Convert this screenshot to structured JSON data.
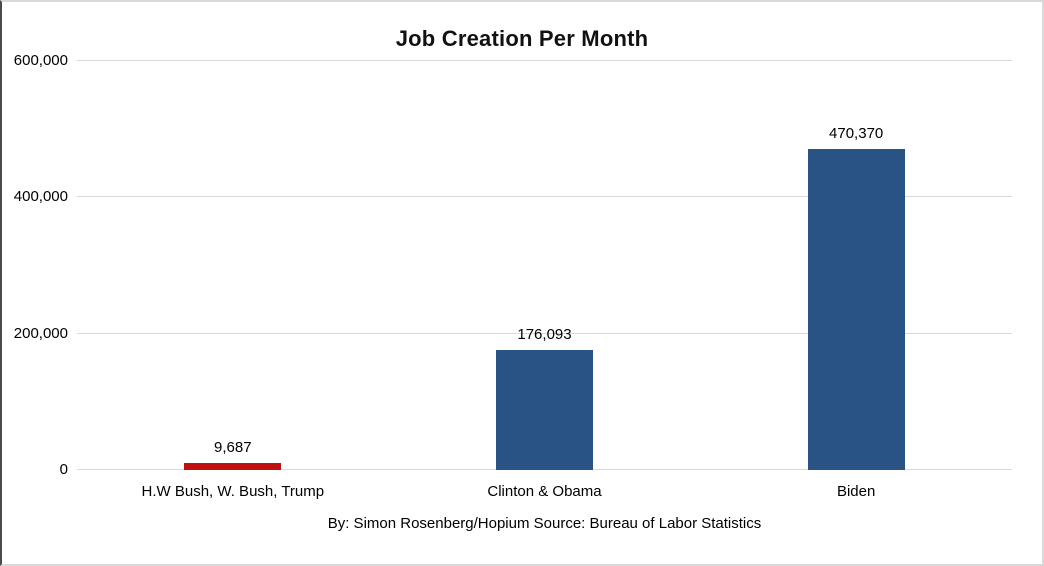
{
  "title": "Job Creation Per Month",
  "caption": "By: Simon Rosenberg/Hopium Source: Bureau of Labor Statistics",
  "chart_data": {
    "type": "bar",
    "title": "Job Creation Per Month",
    "categories": [
      "H.W Bush, W. Bush, Trump",
      "Clinton & Obama",
      "Biden"
    ],
    "values": [
      9687,
      176093,
      470370
    ],
    "value_labels": [
      "9,687",
      "176,093",
      "470,370"
    ],
    "bar_colors": [
      "#c00f0f",
      "#2a5385",
      "#2a5385"
    ],
    "series": [
      {
        "name": "Job Creation Per Month",
        "values": [
          9687,
          176093,
          470370
        ]
      }
    ],
    "xlabel": "",
    "ylabel": "",
    "ylim": [
      0,
      600000
    ],
    "yticks": [
      {
        "value": 0,
        "label": "0"
      },
      {
        "value": 200000,
        "label": "200,000"
      },
      {
        "value": 400000,
        "label": "400,000"
      },
      {
        "value": 600000,
        "label": "600,000"
      }
    ],
    "grid": "horizontal",
    "gridline_color": "#d9d9d9",
    "legend": "none",
    "source_note": "By: Simon Rosenberg/Hopium Source: Bureau of Labor Statistics"
  }
}
